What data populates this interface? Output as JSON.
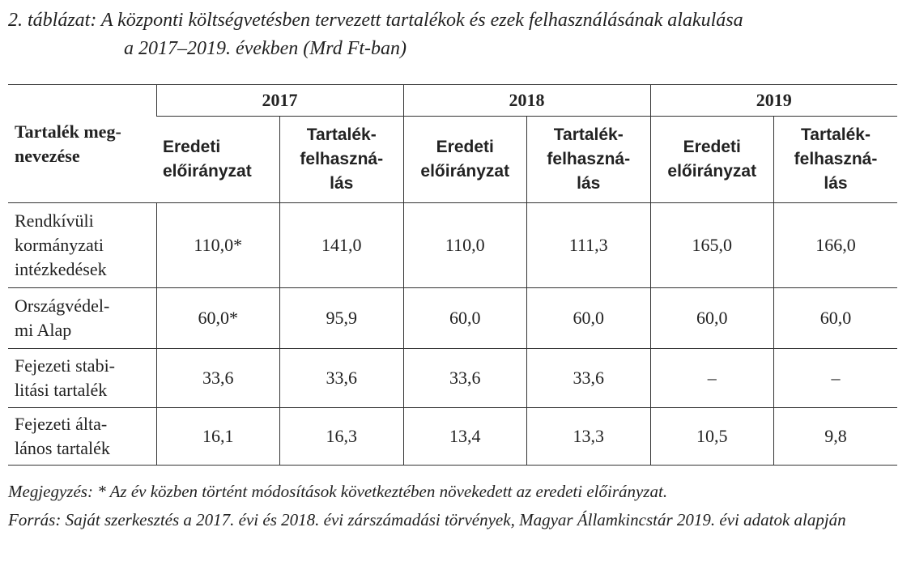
{
  "title": {
    "lines": [
      "2. táblázat: A központi költségvetésben tervezett tartalékok és ezek felhasználásának alakulása",
      "a 2017–2019. években (Mrd Ft-ban)"
    ]
  },
  "table": {
    "corner": "Tartalék meg-\nnevezése",
    "years": [
      "2017",
      "2018",
      "2019"
    ],
    "subheaders": [
      "Eredeti\nelőirányzat",
      "Tartalék-\nfelhaszná-\nlás",
      "Eredeti\nelőirányzat",
      "Tartalék-\nfelhaszná-\nlás",
      "Eredeti\nelőirányzat",
      "Tartalék-\nfelhaszná-\nlás"
    ],
    "rows": [
      [
        "Rendkívüli\nkormányzati\nintézkedések",
        "110,0*",
        "141,0",
        "110,0",
        "111,3",
        "165,0",
        "166,0"
      ],
      [
        "Országvédel-\nmi Alap",
        "60,0*",
        "95,9",
        "60,0",
        "60,0",
        "60,0",
        "60,0"
      ],
      [
        "Fejezeti stabi-\nlitási tartalék",
        "33,6",
        "33,6",
        "33,6",
        "33,6",
        "–",
        "–"
      ],
      [
        "Fejezeti álta-\nlános tartalék",
        "16,1",
        "16,3",
        "13,4",
        "13,3",
        "10,5",
        "9,8"
      ]
    ]
  },
  "notes": [
    "Megjegyzés: * Az év közben történt módosítások következtében növekedett az eredeti előirányzat.",
    "Forrás: Saját szerkesztés a 2017. évi és 2018. évi zárszámadási törvények, Magyar Államkincstár 2019. évi adatok alapján"
  ]
}
